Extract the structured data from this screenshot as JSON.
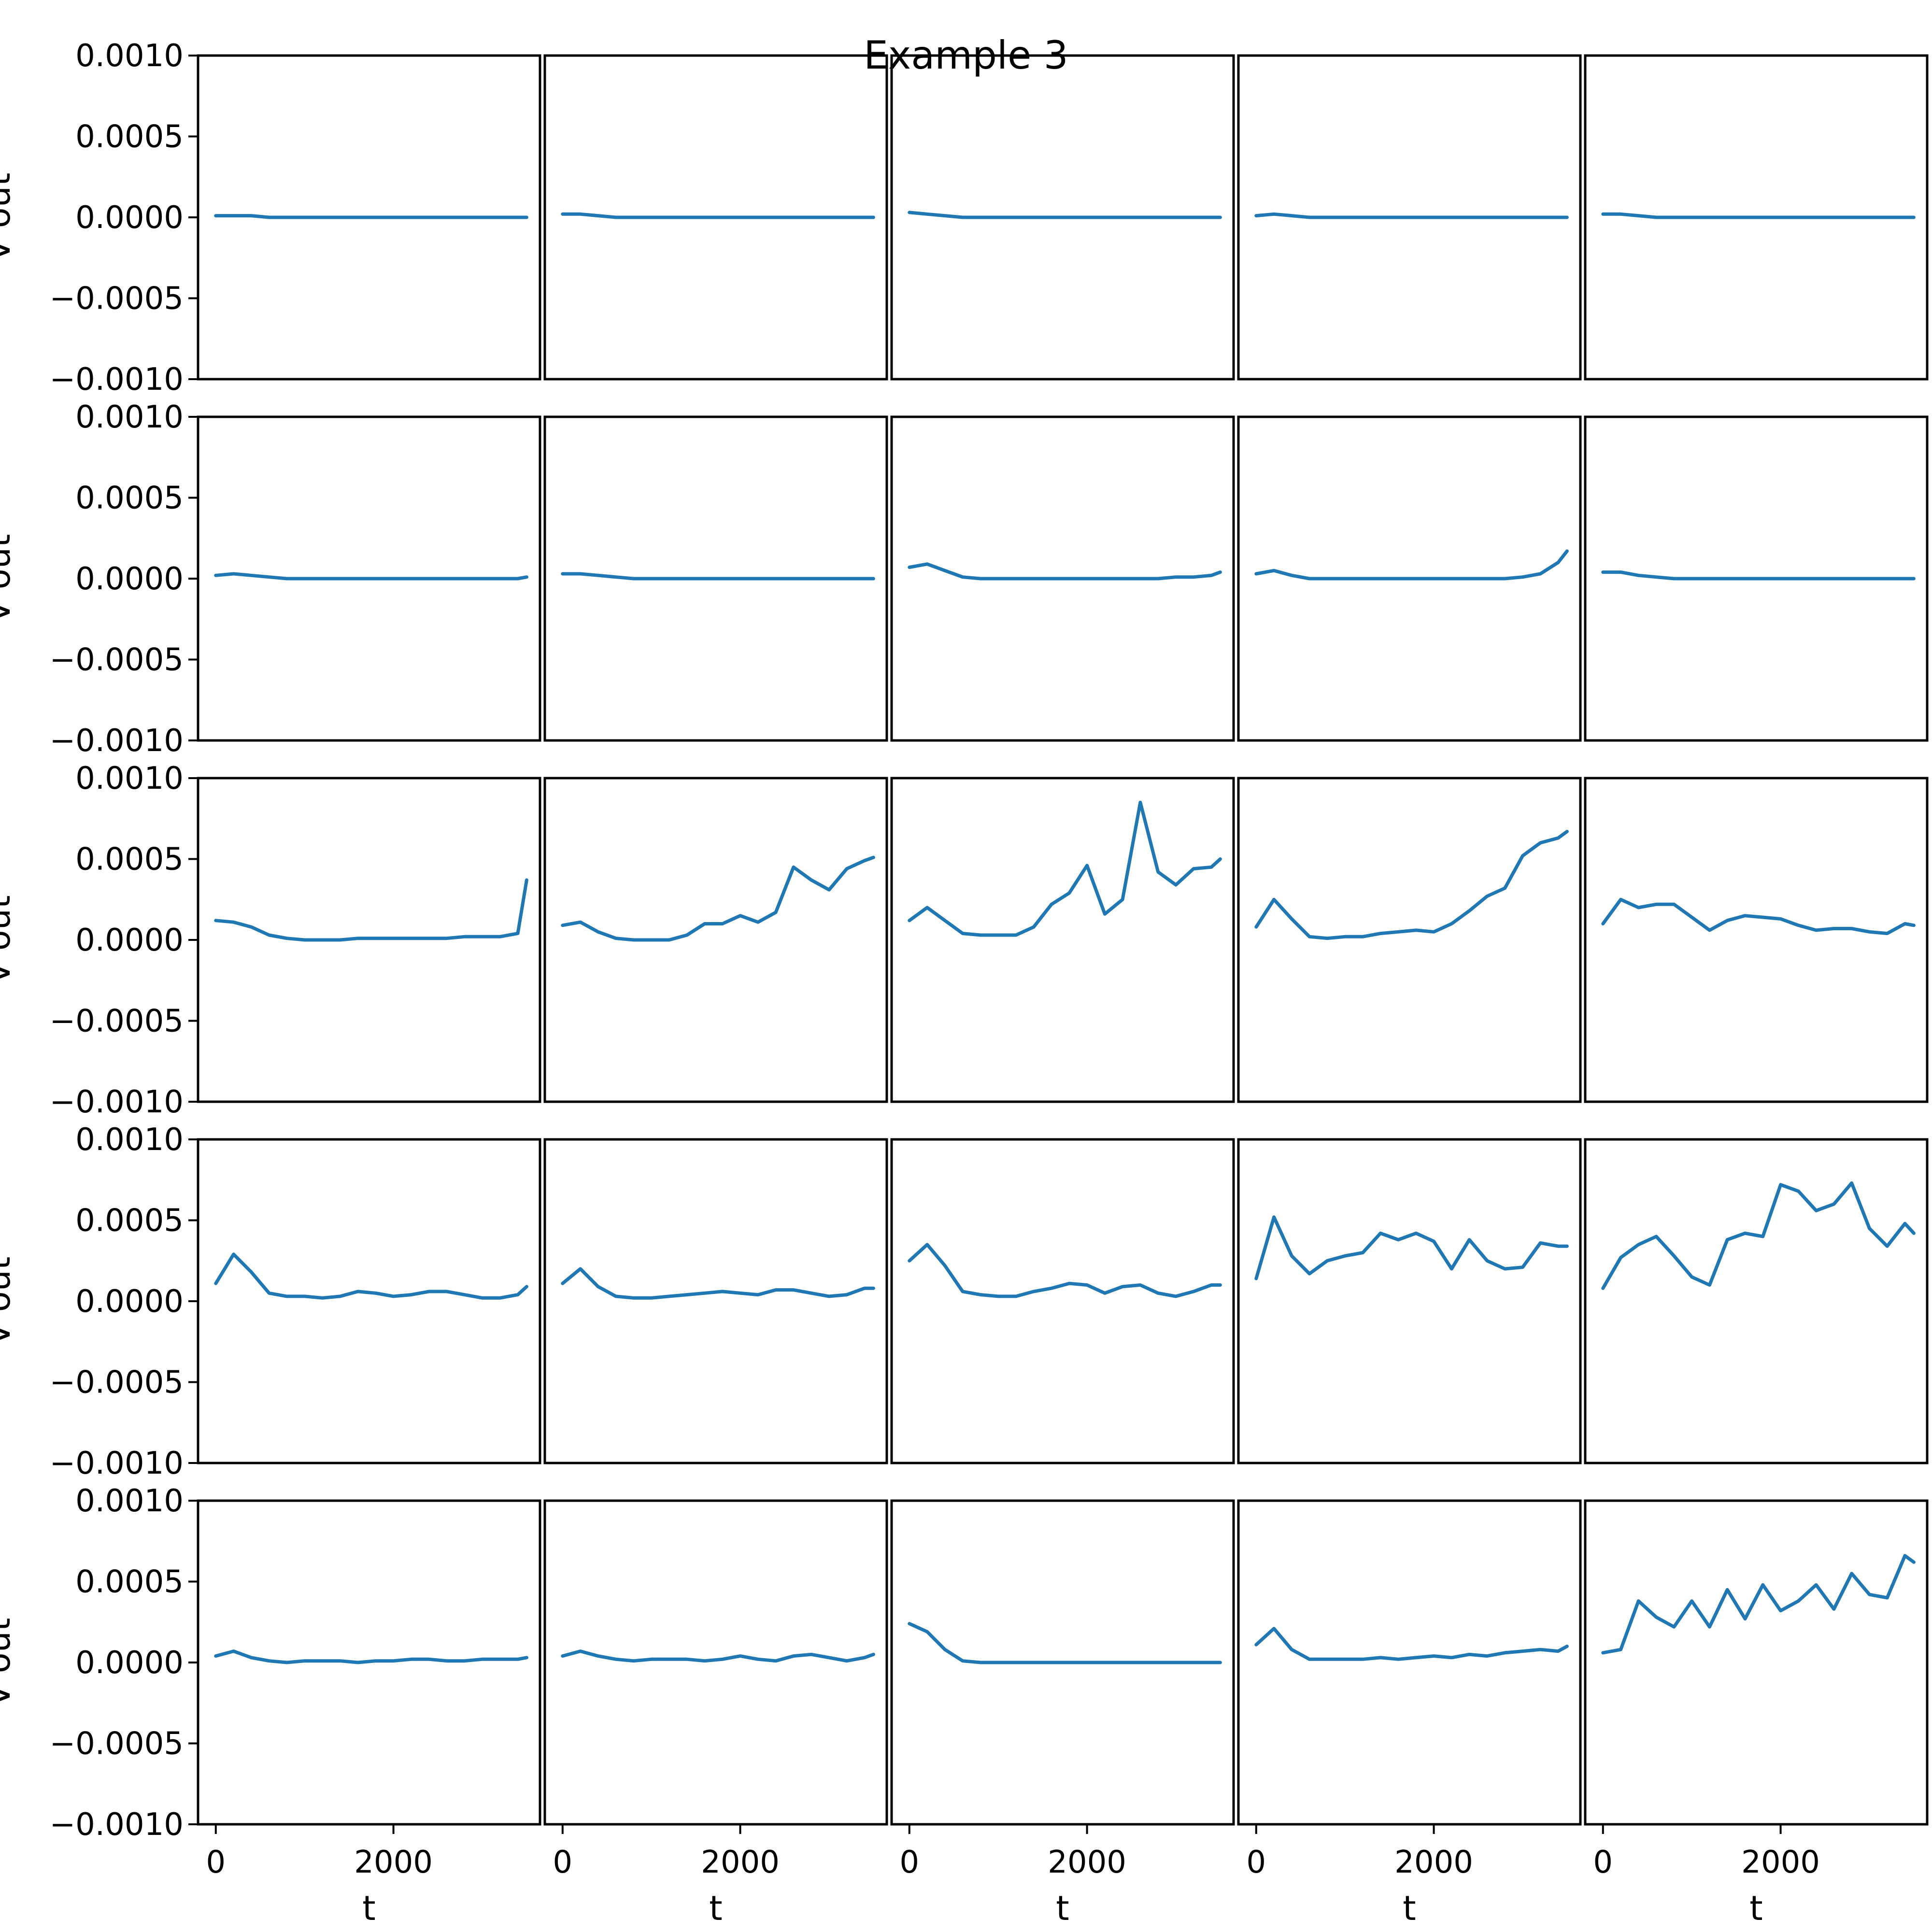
{
  "figure": {
    "title": "Example 3"
  },
  "colors": {
    "series": "#1f77b4",
    "axes": "#000000",
    "background": "#ffffff"
  },
  "chart_data": {
    "type": "line",
    "grid": false,
    "rows": 5,
    "cols": 5,
    "xlabel": "t",
    "ylabel": "V out",
    "xlim": [
      -200,
      3650
    ],
    "ylim": [
      -0.001,
      0.001
    ],
    "xticks": [
      0,
      2000
    ],
    "xtick_labels": [
      "0",
      "2000"
    ],
    "yticks": [
      0.001,
      0.0005,
      0,
      -0.0005,
      -0.001
    ],
    "ytick_labels": [
      "0.0010",
      "0.0005",
      "0.0000",
      "−0.0005",
      "−0.0010"
    ],
    "x": [
      0,
      200,
      400,
      600,
      800,
      1000,
      1200,
      1400,
      1600,
      1800,
      2000,
      2200,
      2400,
      2600,
      2800,
      3000,
      3200,
      3400,
      3500
    ],
    "panels": [
      [
        {
          "values": [
            1e-05,
            1e-05,
            1e-05,
            0,
            0,
            0,
            0,
            0,
            0,
            0,
            0,
            0,
            0,
            0,
            0,
            0,
            0,
            0,
            0
          ]
        },
        {
          "values": [
            2e-05,
            2e-05,
            1e-05,
            0,
            0,
            0,
            0,
            0,
            0,
            0,
            0,
            0,
            0,
            0,
            0,
            0,
            0,
            0,
            0
          ]
        },
        {
          "values": [
            3e-05,
            2e-05,
            1e-05,
            0,
            0,
            0,
            0,
            0,
            0,
            0,
            0,
            0,
            0,
            0,
            0,
            0,
            0,
            0,
            0
          ]
        },
        {
          "values": [
            1e-05,
            2e-05,
            1e-05,
            0,
            0,
            0,
            0,
            0,
            0,
            0,
            0,
            0,
            0,
            0,
            0,
            0,
            0,
            0,
            0
          ]
        },
        {
          "values": [
            2e-05,
            2e-05,
            1e-05,
            0,
            0,
            0,
            0,
            0,
            0,
            0,
            0,
            0,
            0,
            0,
            0,
            0,
            0,
            0,
            0
          ]
        }
      ],
      [
        {
          "values": [
            2e-05,
            3e-05,
            2e-05,
            1e-05,
            0,
            0,
            0,
            0,
            0,
            0,
            0,
            0,
            0,
            0,
            0,
            0,
            0,
            0,
            1e-05
          ]
        },
        {
          "values": [
            3e-05,
            3e-05,
            2e-05,
            1e-05,
            0,
            0,
            0,
            0,
            0,
            0,
            0,
            0,
            0,
            0,
            0,
            0,
            0,
            0,
            0
          ]
        },
        {
          "values": [
            7e-05,
            9e-05,
            5e-05,
            1e-05,
            0,
            0,
            0,
            0,
            0,
            0,
            0,
            0,
            0,
            0,
            0,
            1e-05,
            1e-05,
            2e-05,
            4e-05
          ]
        },
        {
          "values": [
            3e-05,
            5e-05,
            2e-05,
            0,
            0,
            0,
            0,
            0,
            0,
            0,
            0,
            0,
            0,
            0,
            0,
            1e-05,
            3e-05,
            0.0001,
            0.00017
          ]
        },
        {
          "values": [
            4e-05,
            4e-05,
            2e-05,
            1e-05,
            0,
            0,
            0,
            0,
            0,
            0,
            0,
            0,
            0,
            0,
            0,
            0,
            0,
            0,
            0
          ]
        }
      ],
      [
        {
          "values": [
            0.00012,
            0.00011,
            8e-05,
            3e-05,
            1e-05,
            0,
            0,
            0,
            1e-05,
            1e-05,
            1e-05,
            1e-05,
            1e-05,
            1e-05,
            2e-05,
            2e-05,
            2e-05,
            4e-05,
            0.00037
          ]
        },
        {
          "values": [
            9e-05,
            0.00011,
            5e-05,
            1e-05,
            0,
            0,
            0,
            3e-05,
            0.0001,
            0.0001,
            0.00015,
            0.00011,
            0.00017,
            0.00045,
            0.00037,
            0.00031,
            0.00044,
            0.00049,
            0.00051
          ]
        },
        {
          "values": [
            0.00012,
            0.0002,
            0.00012,
            4e-05,
            3e-05,
            3e-05,
            3e-05,
            8e-05,
            0.00022,
            0.00029,
            0.00046,
            0.00016,
            0.00025,
            0.00085,
            0.00042,
            0.00034,
            0.00044,
            0.00045,
            0.0005
          ]
        },
        {
          "values": [
            8e-05,
            0.00025,
            0.00013,
            2e-05,
            1e-05,
            2e-05,
            2e-05,
            4e-05,
            5e-05,
            6e-05,
            5e-05,
            0.0001,
            0.00018,
            0.00027,
            0.00032,
            0.00052,
            0.0006,
            0.00063,
            0.00067
          ]
        },
        {
          "values": [
            0.0001,
            0.00025,
            0.0002,
            0.00022,
            0.00022,
            0.00014,
            6e-05,
            0.00012,
            0.00015,
            0.00014,
            0.00013,
            9e-05,
            6e-05,
            7e-05,
            7e-05,
            5e-05,
            4e-05,
            0.0001,
            9e-05
          ]
        }
      ],
      [
        {
          "values": [
            0.00011,
            0.00029,
            0.00018,
            5e-05,
            3e-05,
            3e-05,
            2e-05,
            3e-05,
            6e-05,
            5e-05,
            3e-05,
            4e-05,
            6e-05,
            6e-05,
            4e-05,
            2e-05,
            2e-05,
            4e-05,
            9e-05
          ]
        },
        {
          "values": [
            0.00011,
            0.0002,
            9e-05,
            3e-05,
            2e-05,
            2e-05,
            3e-05,
            4e-05,
            5e-05,
            6e-05,
            5e-05,
            4e-05,
            7e-05,
            7e-05,
            5e-05,
            3e-05,
            4e-05,
            8e-05,
            8e-05
          ]
        },
        {
          "values": [
            0.00025,
            0.00035,
            0.00022,
            6e-05,
            4e-05,
            3e-05,
            3e-05,
            6e-05,
            8e-05,
            0.00011,
            0.0001,
            5e-05,
            9e-05,
            0.0001,
            5e-05,
            3e-05,
            6e-05,
            0.0001,
            0.0001
          ]
        },
        {
          "values": [
            0.00014,
            0.00052,
            0.00028,
            0.00017,
            0.00025,
            0.00028,
            0.0003,
            0.00042,
            0.00038,
            0.00042,
            0.00037,
            0.0002,
            0.00038,
            0.00025,
            0.0002,
            0.00021,
            0.00036,
            0.00034,
            0.00034
          ]
        },
        {
          "values": [
            8e-05,
            0.00027,
            0.00035,
            0.0004,
            0.00028,
            0.00015,
            0.0001,
            0.00038,
            0.00042,
            0.0004,
            0.00072,
            0.00068,
            0.00056,
            0.0006,
            0.00073,
            0.00045,
            0.00034,
            0.00048,
            0.00042
          ]
        }
      ],
      [
        {
          "values": [
            4e-05,
            7e-05,
            3e-05,
            1e-05,
            0,
            1e-05,
            1e-05,
            1e-05,
            0,
            1e-05,
            1e-05,
            2e-05,
            2e-05,
            1e-05,
            1e-05,
            2e-05,
            2e-05,
            2e-05,
            3e-05
          ]
        },
        {
          "values": [
            4e-05,
            7e-05,
            4e-05,
            2e-05,
            1e-05,
            2e-05,
            2e-05,
            2e-05,
            1e-05,
            2e-05,
            4e-05,
            2e-05,
            1e-05,
            4e-05,
            5e-05,
            3e-05,
            1e-05,
            3e-05,
            5e-05
          ]
        },
        {
          "values": [
            0.00024,
            0.00019,
            8e-05,
            1e-05,
            0,
            0,
            0,
            0,
            0,
            0,
            0,
            0,
            0,
            0,
            0,
            0,
            0,
            0,
            0
          ]
        },
        {
          "values": [
            0.00011,
            0.00021,
            8e-05,
            2e-05,
            2e-05,
            2e-05,
            2e-05,
            3e-05,
            2e-05,
            3e-05,
            4e-05,
            3e-05,
            5e-05,
            4e-05,
            6e-05,
            7e-05,
            8e-05,
            7e-05,
            0.0001
          ]
        },
        {
          "values": [
            6e-05,
            8e-05,
            0.00038,
            0.00028,
            0.00022,
            0.00038,
            0.00022,
            0.00045,
            0.00027,
            0.00048,
            0.00032,
            0.00038,
            0.00048,
            0.00033,
            0.00055,
            0.00042,
            0.0004,
            0.00066,
            0.00062
          ]
        }
      ]
    ]
  }
}
